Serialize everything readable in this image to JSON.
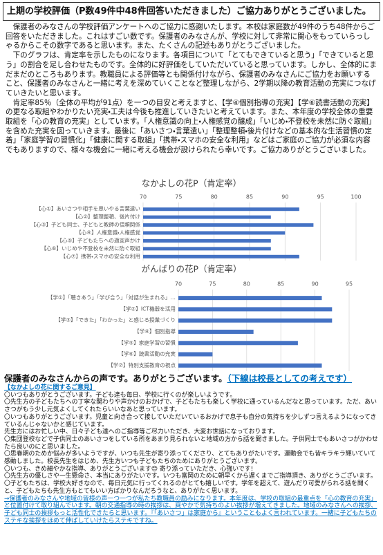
{
  "header": {
    "title": "上期の学校評価（P数49件中48件回答いただきました）ご協力ありがとうございました。"
  },
  "intro": [
    "保護者のみなさんの学校評価アンケートへのご協力に感謝いたします。本校は家庭数が49件のうち48件からご回答をいただきました。これはすごい数です。保護者のみなさんが、学校に対して非常に関心をもっていらっしゃるからこその数字であると思います。また、たくさんの記述もありがとうございました。",
    "下のグラフは、肯定率を示したものになります。各項目について「とてもできていると思う」「できていると思う」の割合を足し合わせたものです。全体的に好評価をしていただいていると思っています。しかし、全体的にまだまだのところもあります。教職員による評価等とも関係付けながら、保護者のみなさんにご協力をお願いすること、保護者のみなさんと一緒に考えを深めていくことなど整理しながら、2学期以降の教育活動の充実につなげていきたいと思います。",
    "肯定率85％（全体の平均が91点）を一つの目安と考えますと、【学④個別指導の充実】【学⑥読書活動の充実】の更なる取組やわかりたい充実・工夫は今後も推進していきたいと考えています。また、本年度の学校全体の重要取組を「心の教育の充実」としています。「人権意識の向上・人権感覚の醸成」「いじめ・不登校を未然に防ぐ取組」を含めた充実を図っていきます。最後に「あいさつ・言葉遣い」「整理整頓・後片付けなどの基本的な生活習慣の定着」「家庭学習の習慣化」「健康に関する取組」「携帯・スマホの安全な利用」などはご家庭のご協力が必須な内容でもありますので、様々な機会に一緒に考える機会が設けられたら幸いです。ご協力ありがとうございました。"
  ],
  "chart_data": [
    {
      "type": "bar",
      "orientation": "horizontal",
      "title": "なかよしの花P（肯定率）",
      "categories": [
        "【心①】あいさつや相手を思いやる言葉遣い",
        "【心②】整理整頓、後片付け",
        "【心③】子ども同士、子どもと教師の信頼関係",
        "【心④】人権意識・人権感覚",
        "【心⑤】子どもたちへの適宜声かけ",
        "【心⑥】いじめや不登校を未然に防ぐ取組",
        "【心⑦】携帯・スマホの安全な利用"
      ],
      "values": [
        92,
        88,
        94,
        90,
        88,
        88,
        92
      ],
      "color": "#4472c4",
      "xlim": [
        70,
        100
      ],
      "xticks": [
        70,
        75,
        80,
        85,
        90,
        95,
        100
      ],
      "grid": true
    },
    {
      "type": "bar",
      "orientation": "horizontal",
      "title": "がんばりの花P（肯定率）",
      "categories": [
        "【学①】「聴きあう」「学び合う」「対話が生まれる」…",
        "【学②】ICT機器を活用",
        "【学③】「できた」「わかった」と感じる授業づくり",
        "【学④】個別指導",
        "【学⑤】家庭学習の習慣",
        "【学⑥】読書活動の充実",
        "【学⑦】特別支援教育の視点"
      ],
      "values": [
        91,
        92.5,
        92.5,
        81,
        87.5,
        75,
        91
      ],
      "color": "#4472c4",
      "xlim": [
        70,
        95
      ],
      "xticks": [
        70,
        75,
        80,
        85,
        90,
        95
      ],
      "grid": true
    }
  ],
  "comments": {
    "heading": "保護者のみなさんからの声です。ありがとうございます。",
    "note": "（下線は校長としての考えです）",
    "subheading": "【なかよしの花に関するご意見】",
    "items": [
      "〇いつもありがとうございます。子ども達も毎日、学校に行くのが楽しいようです。",
      "〇先生方の子どもたちへの丁寧な関わりや声かけのおかげで、子どもたちも楽しく学校に通っているんだなと思っています。ただ、あいさつがもう少し元気よくしてくれたらいいなあと思っています。",
      "〇いつもありがとうございます。児童と向き合って接していただいているおかげで息子も自分の気持ちを少しずつ言えるようになってきているんじゃないかと感じています。",
      "先生方にはお忙しい中、日々子ども達へのご指導等ご尽力いただき、大変お世話になっております。",
      "〇集団登校などで子供同士のあいさつをしている所をあまり見られないと地域の方から話を聞きました。子供同士でもあいさつがかわせたら良いのにと思いました。",
      "〇思春期のためか悩みが多いようですが、いつも先生が寄り添ってくださり、とてもありがたいです。運動会でも皆キラキラ輝いていて感動しました。校長先生をはじめ、先生方いつも子どもたちのためにありがとうございます。",
      "〇いつも、きめ細やかな指導、ありがとうございます😊 寄り添っていただき、心強いです!",
      "〇先生方の優しさや一生懸命さ、本当にありがたいです。いつも富岡のために朝早くから遅くまでご指導頂き、ありがとうございます。",
      "〇子どもたちは、学校大好きなので、毎日元気に行ってくれるのがとても嬉しいです。学年を超えて、遊んだり可愛がられる話を聞くと、子どもたちも先生方もとてもいい方ばかりなんだろうなと、ありがたく思います。"
    ],
    "response": "→保護者のみなさんや地域の皆様の声一つ一つが私たち教職員の励みになります。本年度は、学校の取組の最重点を「心の教育の充実」と位置付けて取り組んでいます。朝の交通指導の時の挨拶は、爽やかで気持ちのよい挨拶が増えてきました。地域のみなさんへの挨拶、子ども同士の挨拶もっと活性化できたらと思います。『「あいさつ」は家庭から』ということもよく言われています。一緒に子どもたちのステキな挨拶をほめて伸ばしていけたらステキですね。"
  }
}
